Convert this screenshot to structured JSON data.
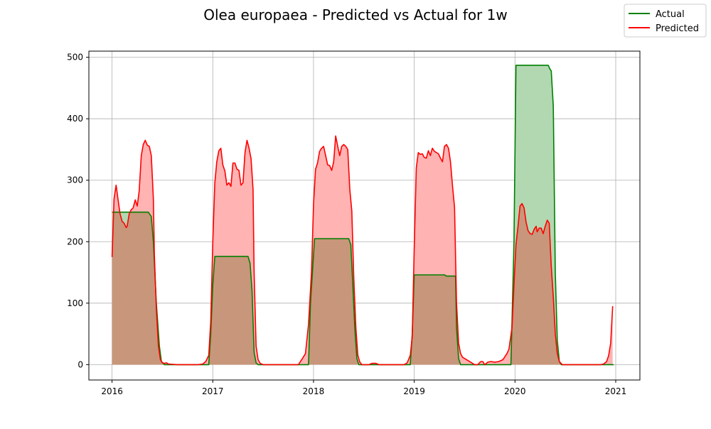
{
  "chart_data": {
    "type": "area",
    "title": "Olea europaea - Predicted vs Actual for 1w",
    "xlabel": "",
    "ylabel": "",
    "xlim": [
      2015.77,
      2021.24
    ],
    "ylim": [
      -25,
      510
    ],
    "x_ticks": [
      2016,
      2017,
      2018,
      2019,
      2020,
      2021
    ],
    "x_tick_labels": [
      "2016",
      "2017",
      "2018",
      "2019",
      "2020",
      "2021"
    ],
    "y_ticks": [
      0,
      100,
      200,
      300,
      400,
      500
    ],
    "y_tick_labels": [
      "0",
      "100",
      "200",
      "300",
      "400",
      "500"
    ],
    "grid": true,
    "legend": {
      "placement": "top-right, outside axes",
      "entries": [
        "Actual",
        "Predicted"
      ]
    },
    "colors": {
      "actual_line": "#008000",
      "actual_fill": "#b2d8b2",
      "predicted_line": "#ff0000",
      "predicted_fill": "#ffb3b3",
      "overlap_fill": "#c8967a"
    },
    "series": [
      {
        "name": "Actual",
        "points": [
          [
            2016.0,
            248
          ],
          [
            2016.36,
            248
          ],
          [
            2016.39,
            241
          ],
          [
            2016.41,
            200
          ],
          [
            2016.44,
            100
          ],
          [
            2016.47,
            30
          ],
          [
            2016.49,
            5
          ],
          [
            2016.52,
            0
          ],
          [
            2016.96,
            0
          ],
          [
            2016.98,
            50
          ],
          [
            2017.0,
            130
          ],
          [
            2017.02,
            176
          ],
          [
            2017.35,
            176
          ],
          [
            2017.37,
            165
          ],
          [
            2017.39,
            120
          ],
          [
            2017.41,
            20
          ],
          [
            2017.43,
            3
          ],
          [
            2017.45,
            0
          ],
          [
            2017.95,
            0
          ],
          [
            2017.97,
            100
          ],
          [
            2018.01,
            205
          ],
          [
            2018.35,
            205
          ],
          [
            2018.37,
            195
          ],
          [
            2018.39,
            130
          ],
          [
            2018.41,
            60
          ],
          [
            2018.43,
            10
          ],
          [
            2018.45,
            0
          ],
          [
            2018.96,
            0
          ],
          [
            2018.98,
            50
          ],
          [
            2019.0,
            146
          ],
          [
            2019.3,
            146
          ],
          [
            2019.32,
            144
          ],
          [
            2019.41,
            144
          ],
          [
            2019.42,
            60
          ],
          [
            2019.44,
            10
          ],
          [
            2019.46,
            0
          ],
          [
            2019.96,
            0
          ],
          [
            2019.99,
            200
          ],
          [
            2020.01,
            487
          ],
          [
            2020.33,
            487
          ],
          [
            2020.35,
            480
          ],
          [
            2020.36,
            478
          ],
          [
            2020.38,
            420
          ],
          [
            2020.4,
            150
          ],
          [
            2020.42,
            40
          ],
          [
            2020.44,
            5
          ],
          [
            2020.46,
            0
          ],
          [
            2020.98,
            0
          ]
        ]
      },
      {
        "name": "Predicted",
        "points": [
          [
            2016.0,
            175
          ],
          [
            2016.02,
            270
          ],
          [
            2016.04,
            292
          ],
          [
            2016.06,
            268
          ],
          [
            2016.08,
            245
          ],
          [
            2016.1,
            233
          ],
          [
            2016.12,
            230
          ],
          [
            2016.14,
            223
          ],
          [
            2016.15,
            225
          ],
          [
            2016.17,
            245
          ],
          [
            2016.19,
            252
          ],
          [
            2016.21,
            255
          ],
          [
            2016.23,
            268
          ],
          [
            2016.25,
            258
          ],
          [
            2016.27,
            283
          ],
          [
            2016.29,
            340
          ],
          [
            2016.31,
            358
          ],
          [
            2016.33,
            365
          ],
          [
            2016.35,
            357
          ],
          [
            2016.37,
            355
          ],
          [
            2016.39,
            340
          ],
          [
            2016.41,
            270
          ],
          [
            2016.42,
            180
          ],
          [
            2016.44,
            90
          ],
          [
            2016.46,
            30
          ],
          [
            2016.48,
            8
          ],
          [
            2016.5,
            3
          ],
          [
            2016.52,
            2
          ],
          [
            2016.54,
            3
          ],
          [
            2016.56,
            1
          ],
          [
            2016.65,
            0
          ],
          [
            2016.85,
            0
          ],
          [
            2016.9,
            1
          ],
          [
            2016.93,
            5
          ],
          [
            2016.96,
            15
          ],
          [
            2016.98,
            70
          ],
          [
            2017.0,
            200
          ],
          [
            2017.02,
            295
          ],
          [
            2017.04,
            330
          ],
          [
            2017.06,
            348
          ],
          [
            2017.08,
            352
          ],
          [
            2017.1,
            325
          ],
          [
            2017.12,
            315
          ],
          [
            2017.14,
            292
          ],
          [
            2017.16,
            296
          ],
          [
            2017.18,
            290
          ],
          [
            2017.2,
            328
          ],
          [
            2017.22,
            328
          ],
          [
            2017.24,
            318
          ],
          [
            2017.26,
            316
          ],
          [
            2017.28,
            292
          ],
          [
            2017.3,
            296
          ],
          [
            2017.32,
            345
          ],
          [
            2017.34,
            365
          ],
          [
            2017.36,
            352
          ],
          [
            2017.38,
            335
          ],
          [
            2017.4,
            285
          ],
          [
            2017.41,
            150
          ],
          [
            2017.43,
            30
          ],
          [
            2017.45,
            8
          ],
          [
            2017.47,
            2
          ],
          [
            2017.5,
            0
          ],
          [
            2017.85,
            0
          ],
          [
            2017.87,
            5
          ],
          [
            2017.89,
            10
          ],
          [
            2017.92,
            18
          ],
          [
            2017.95,
            65
          ],
          [
            2017.98,
            150
          ],
          [
            2018.0,
            262
          ],
          [
            2018.02,
            318
          ],
          [
            2018.04,
            328
          ],
          [
            2018.06,
            347
          ],
          [
            2018.08,
            352
          ],
          [
            2018.1,
            355
          ],
          [
            2018.12,
            340
          ],
          [
            2018.14,
            325
          ],
          [
            2018.16,
            324
          ],
          [
            2018.18,
            316
          ],
          [
            2018.2,
            330
          ],
          [
            2018.22,
            372
          ],
          [
            2018.24,
            355
          ],
          [
            2018.26,
            340
          ],
          [
            2018.28,
            355
          ],
          [
            2018.3,
            358
          ],
          [
            2018.32,
            355
          ],
          [
            2018.34,
            350
          ],
          [
            2018.36,
            285
          ],
          [
            2018.38,
            250
          ],
          [
            2018.4,
            140
          ],
          [
            2018.42,
            60
          ],
          [
            2018.44,
            15
          ],
          [
            2018.46,
            4
          ],
          [
            2018.48,
            0
          ],
          [
            2018.55,
            0
          ],
          [
            2018.58,
            2
          ],
          [
            2018.62,
            2
          ],
          [
            2018.65,
            0
          ],
          [
            2018.9,
            0
          ],
          [
            2018.93,
            3
          ],
          [
            2018.96,
            15
          ],
          [
            2018.98,
            45
          ],
          [
            2019.0,
            190
          ],
          [
            2019.02,
            320
          ],
          [
            2019.04,
            345
          ],
          [
            2019.06,
            342
          ],
          [
            2019.08,
            343
          ],
          [
            2019.1,
            337
          ],
          [
            2019.12,
            336
          ],
          [
            2019.14,
            348
          ],
          [
            2019.16,
            340
          ],
          [
            2019.18,
            352
          ],
          [
            2019.2,
            347
          ],
          [
            2019.22,
            345
          ],
          [
            2019.24,
            343
          ],
          [
            2019.26,
            336
          ],
          [
            2019.28,
            330
          ],
          [
            2019.3,
            355
          ],
          [
            2019.32,
            358
          ],
          [
            2019.34,
            352
          ],
          [
            2019.36,
            330
          ],
          [
            2019.38,
            290
          ],
          [
            2019.4,
            256
          ],
          [
            2019.42,
            100
          ],
          [
            2019.44,
            35
          ],
          [
            2019.46,
            18
          ],
          [
            2019.48,
            12
          ],
          [
            2019.52,
            8
          ],
          [
            2019.56,
            4
          ],
          [
            2019.6,
            0
          ],
          [
            2019.63,
            0
          ],
          [
            2019.66,
            5
          ],
          [
            2019.68,
            5
          ],
          [
            2019.7,
            0
          ],
          [
            2019.73,
            4
          ],
          [
            2019.76,
            5
          ],
          [
            2019.8,
            4
          ],
          [
            2019.84,
            5
          ],
          [
            2019.88,
            8
          ],
          [
            2019.92,
            18
          ],
          [
            2019.94,
            25
          ],
          [
            2019.97,
            60
          ],
          [
            2019.99,
            130
          ],
          [
            2020.01,
            195
          ],
          [
            2020.03,
            225
          ],
          [
            2020.05,
            258
          ],
          [
            2020.07,
            262
          ],
          [
            2020.09,
            255
          ],
          [
            2020.11,
            232
          ],
          [
            2020.13,
            218
          ],
          [
            2020.15,
            213
          ],
          [
            2020.17,
            212
          ],
          [
            2020.19,
            220
          ],
          [
            2020.21,
            225
          ],
          [
            2020.22,
            216
          ],
          [
            2020.24,
            222
          ],
          [
            2020.26,
            222
          ],
          [
            2020.28,
            213
          ],
          [
            2020.3,
            225
          ],
          [
            2020.32,
            235
          ],
          [
            2020.34,
            230
          ],
          [
            2020.36,
            160
          ],
          [
            2020.38,
            110
          ],
          [
            2020.4,
            50
          ],
          [
            2020.42,
            18
          ],
          [
            2020.44,
            5
          ],
          [
            2020.47,
            0
          ],
          [
            2020.85,
            0
          ],
          [
            2020.88,
            1
          ],
          [
            2020.91,
            5
          ],
          [
            2020.93,
            15
          ],
          [
            2020.95,
            35
          ],
          [
            2020.97,
            95
          ]
        ]
      }
    ]
  }
}
